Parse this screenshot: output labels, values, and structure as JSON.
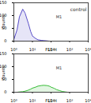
{
  "chart_data": [
    {
      "type": "line",
      "x": [
        1,
        1.5,
        2,
        3,
        4,
        6,
        8,
        10,
        15,
        20,
        30,
        40,
        60,
        80,
        100,
        150,
        200,
        300,
        400,
        600,
        800,
        1000
      ],
      "series": [
        {
          "name": "control",
          "color": "#5a4fc8",
          "values": [
            6,
            45,
            95,
            125,
            110,
            70,
            38,
            20,
            10,
            5,
            3,
            2,
            1,
            0,
            0,
            0,
            0,
            0,
            0,
            0,
            0,
            0
          ]
        }
      ],
      "annotation": "M1",
      "xlabel": "FL1-H",
      "ylabel": "Counts",
      "log": "x",
      "xlim": [
        1,
        10000
      ],
      "xticks": [
        {
          "value": 1,
          "label": "10⁰"
        },
        {
          "value": 10,
          "label": "10¹"
        },
        {
          "value": 100,
          "label": "10²"
        },
        {
          "value": 1000,
          "label": "10³"
        },
        {
          "value": 10000,
          "label": "10⁴"
        }
      ],
      "ylim": [
        0,
        150
      ],
      "yticks": [
        0,
        50,
        100,
        150
      ]
    },
    {
      "type": "line",
      "x": [
        1,
        1.5,
        2,
        3,
        4,
        6,
        8,
        10,
        15,
        20,
        30,
        40,
        60,
        80,
        100,
        150,
        200,
        300,
        400,
        600,
        800,
        1000
      ],
      "series": [
        {
          "name": null,
          "color": "#3cbf3c",
          "values": [
            0,
            0,
            1,
            2,
            4,
            8,
            12,
            16,
            20,
            24,
            26,
            27,
            26,
            24,
            20,
            15,
            10,
            6,
            3,
            1,
            0,
            0
          ]
        }
      ],
      "annotation": "M1",
      "xlabel": "FL1-H",
      "ylabel": "Counts",
      "log": "x",
      "xlim": [
        1,
        10000
      ],
      "xticks": [
        {
          "value": 1,
          "label": "10⁰"
        },
        {
          "value": 10,
          "label": "10¹"
        },
        {
          "value": 100,
          "label": "10²"
        },
        {
          "value": 1000,
          "label": "10³"
        },
        {
          "value": 10000,
          "label": "10⁴"
        }
      ],
      "ylim": [
        0,
        150
      ],
      "yticks": [
        0,
        50,
        100,
        150
      ]
    }
  ]
}
